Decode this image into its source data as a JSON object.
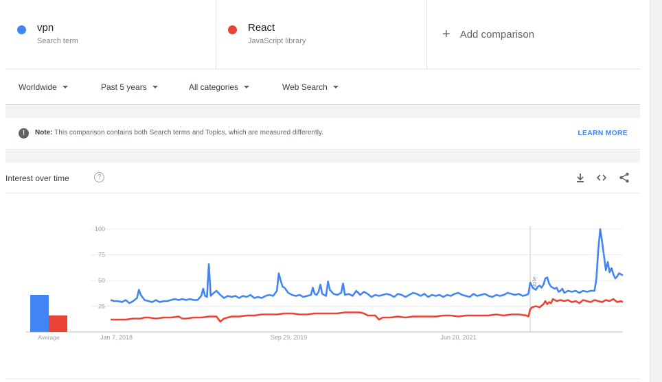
{
  "terms": [
    {
      "name": "vpn",
      "type": "Search term",
      "color": "#4285f4"
    },
    {
      "name": "React",
      "type": "JavaScript library",
      "color": "#ea4335"
    }
  ],
  "add_comparison": "Add comparison",
  "filters": {
    "region": "Worldwide",
    "time": "Past 5 years",
    "category": "All categories",
    "property": "Web Search"
  },
  "note": {
    "label": "Note:",
    "text": "This comparison contains both Search terms and Topics, which are measured differently.",
    "link": "LEARN MORE"
  },
  "card": {
    "title": "Interest over time",
    "help": "?"
  },
  "icons": [
    "download-icon",
    "embed-icon",
    "share-icon"
  ],
  "chart_data": {
    "type": "line",
    "ylim": [
      0,
      100
    ],
    "yticks": [
      "100",
      "75",
      "50",
      "25"
    ],
    "x_ticks": [
      {
        "label": "Jan 7, 2018",
        "week": 0
      },
      {
        "label": "Sep 29, 2019",
        "week": 90
      },
      {
        "label": "Jun 20, 2021",
        "week": 180
      }
    ],
    "annotation": {
      "label": "Note",
      "week": 222
    },
    "average": {
      "label": "Average",
      "values": [
        36,
        16
      ]
    },
    "series": [
      {
        "name": "vpn",
        "color": "#4285f4",
        "points": [
          [
            0,
            31
          ],
          [
            2,
            30
          ],
          [
            4,
            30
          ],
          [
            6,
            29
          ],
          [
            8,
            31
          ],
          [
            10,
            28
          ],
          [
            12,
            30
          ],
          [
            14,
            33
          ],
          [
            15,
            41
          ],
          [
            16,
            36
          ],
          [
            18,
            31
          ],
          [
            20,
            30
          ],
          [
            22,
            29
          ],
          [
            24,
            31
          ],
          [
            26,
            29
          ],
          [
            28,
            30
          ],
          [
            30,
            30
          ],
          [
            32,
            31
          ],
          [
            34,
            32
          ],
          [
            36,
            31
          ],
          [
            38,
            32
          ],
          [
            40,
            31
          ],
          [
            42,
            32
          ],
          [
            44,
            31
          ],
          [
            46,
            31
          ],
          [
            48,
            35
          ],
          [
            49,
            42
          ],
          [
            50,
            35
          ],
          [
            51,
            34
          ],
          [
            52,
            66
          ],
          [
            53,
            35
          ],
          [
            54,
            37
          ],
          [
            56,
            40
          ],
          [
            58,
            36
          ],
          [
            60,
            33
          ],
          [
            62,
            35
          ],
          [
            64,
            34
          ],
          [
            66,
            35
          ],
          [
            68,
            33
          ],
          [
            70,
            35
          ],
          [
            72,
            34
          ],
          [
            74,
            36
          ],
          [
            76,
            33
          ],
          [
            78,
            34
          ],
          [
            80,
            33
          ],
          [
            82,
            35
          ],
          [
            84,
            36
          ],
          [
            86,
            35
          ],
          [
            88,
            40
          ],
          [
            89,
            57
          ],
          [
            90,
            50
          ],
          [
            91,
            44
          ],
          [
            92,
            43
          ],
          [
            94,
            38
          ],
          [
            96,
            36
          ],
          [
            98,
            35
          ],
          [
            100,
            36
          ],
          [
            102,
            34
          ],
          [
            104,
            35
          ],
          [
            106,
            36
          ],
          [
            107,
            43
          ],
          [
            108,
            37
          ],
          [
            109,
            36
          ],
          [
            110,
            39
          ],
          [
            111,
            46
          ],
          [
            112,
            37
          ],
          [
            114,
            35
          ],
          [
            115,
            49
          ],
          [
            116,
            41
          ],
          [
            118,
            37
          ],
          [
            120,
            36
          ],
          [
            122,
            38
          ],
          [
            123,
            47
          ],
          [
            124,
            36
          ],
          [
            126,
            37
          ],
          [
            128,
            35
          ],
          [
            130,
            40
          ],
          [
            132,
            36
          ],
          [
            134,
            39
          ],
          [
            136,
            37
          ],
          [
            138,
            34
          ],
          [
            140,
            36
          ],
          [
            142,
            35
          ],
          [
            144,
            36
          ],
          [
            146,
            37
          ],
          [
            148,
            36
          ],
          [
            150,
            34
          ],
          [
            152,
            37
          ],
          [
            154,
            36
          ],
          [
            156,
            34
          ],
          [
            158,
            36
          ],
          [
            160,
            38
          ],
          [
            162,
            37
          ],
          [
            164,
            35
          ],
          [
            166,
            37
          ],
          [
            168,
            34
          ],
          [
            170,
            36
          ],
          [
            172,
            35
          ],
          [
            174,
            36
          ],
          [
            176,
            34
          ],
          [
            178,
            36
          ],
          [
            180,
            35
          ],
          [
            182,
            37
          ],
          [
            184,
            38
          ],
          [
            186,
            36
          ],
          [
            188,
            35
          ],
          [
            190,
            34
          ],
          [
            192,
            37
          ],
          [
            194,
            35
          ],
          [
            196,
            36
          ],
          [
            198,
            37
          ],
          [
            200,
            35
          ],
          [
            202,
            34
          ],
          [
            204,
            36
          ],
          [
            206,
            35
          ],
          [
            208,
            36
          ],
          [
            210,
            38
          ],
          [
            212,
            37
          ],
          [
            214,
            36
          ],
          [
            216,
            37
          ],
          [
            218,
            35
          ],
          [
            220,
            36
          ],
          [
            221,
            37
          ],
          [
            222,
            48
          ],
          [
            223,
            44
          ],
          [
            224,
            42
          ],
          [
            225,
            41
          ],
          [
            226,
            44
          ],
          [
            227,
            45
          ],
          [
            228,
            43
          ],
          [
            229,
            46
          ],
          [
            230,
            52
          ],
          [
            231,
            53
          ],
          [
            232,
            47
          ],
          [
            233,
            44
          ],
          [
            234,
            43
          ],
          [
            235,
            42
          ],
          [
            236,
            43
          ],
          [
            237,
            39
          ],
          [
            238,
            40
          ],
          [
            239,
            42
          ],
          [
            240,
            38
          ],
          [
            242,
            40
          ],
          [
            244,
            39
          ],
          [
            246,
            40
          ],
          [
            248,
            38
          ],
          [
            250,
            40
          ],
          [
            252,
            39
          ],
          [
            254,
            40
          ],
          [
            256,
            40
          ],
          [
            257,
            52
          ],
          [
            258,
            80
          ],
          [
            259,
            100
          ],
          [
            260,
            88
          ],
          [
            261,
            74
          ],
          [
            262,
            60
          ],
          [
            263,
            68
          ],
          [
            264,
            58
          ],
          [
            265,
            62
          ],
          [
            266,
            56
          ],
          [
            267,
            52
          ],
          [
            268,
            54
          ],
          [
            269,
            57
          ],
          [
            270,
            56
          ],
          [
            271,
            55
          ]
        ]
      },
      {
        "name": "React",
        "color": "#ea4335",
        "points": [
          [
            0,
            12
          ],
          [
            4,
            12
          ],
          [
            8,
            12
          ],
          [
            12,
            13
          ],
          [
            16,
            13
          ],
          [
            18,
            14
          ],
          [
            20,
            14
          ],
          [
            24,
            13
          ],
          [
            28,
            14
          ],
          [
            32,
            14
          ],
          [
            36,
            15
          ],
          [
            38,
            13
          ],
          [
            40,
            13
          ],
          [
            44,
            14
          ],
          [
            48,
            14
          ],
          [
            52,
            15
          ],
          [
            56,
            15
          ],
          [
            58,
            10
          ],
          [
            60,
            13
          ],
          [
            62,
            14
          ],
          [
            64,
            15
          ],
          [
            68,
            15
          ],
          [
            72,
            16
          ],
          [
            76,
            16
          ],
          [
            80,
            17
          ],
          [
            84,
            17
          ],
          [
            88,
            17
          ],
          [
            92,
            18
          ],
          [
            96,
            18
          ],
          [
            100,
            17
          ],
          [
            104,
            17
          ],
          [
            108,
            18
          ],
          [
            112,
            18
          ],
          [
            116,
            18
          ],
          [
            120,
            18
          ],
          [
            124,
            19
          ],
          [
            128,
            19
          ],
          [
            132,
            19
          ],
          [
            134,
            18
          ],
          [
            136,
            16
          ],
          [
            140,
            16
          ],
          [
            142,
            12
          ],
          [
            144,
            14
          ],
          [
            148,
            14
          ],
          [
            152,
            15
          ],
          [
            156,
            14
          ],
          [
            160,
            15
          ],
          [
            164,
            15
          ],
          [
            168,
            15
          ],
          [
            172,
            15
          ],
          [
            176,
            16
          ],
          [
            180,
            16
          ],
          [
            184,
            15
          ],
          [
            188,
            16
          ],
          [
            192,
            16
          ],
          [
            196,
            16
          ],
          [
            200,
            16
          ],
          [
            204,
            17
          ],
          [
            208,
            16
          ],
          [
            212,
            17
          ],
          [
            216,
            17
          ],
          [
            220,
            16
          ],
          [
            221,
            15
          ],
          [
            222,
            22
          ],
          [
            223,
            24
          ],
          [
            225,
            25
          ],
          [
            227,
            24
          ],
          [
            229,
            27
          ],
          [
            230,
            30
          ],
          [
            231,
            27
          ],
          [
            232,
            29
          ],
          [
            233,
            28
          ],
          [
            234,
            32
          ],
          [
            235,
            31
          ],
          [
            236,
            30
          ],
          [
            238,
            31
          ],
          [
            240,
            30
          ],
          [
            242,
            31
          ],
          [
            244,
            29
          ],
          [
            246,
            30
          ],
          [
            248,
            28
          ],
          [
            250,
            31
          ],
          [
            252,
            30
          ],
          [
            254,
            29
          ],
          [
            256,
            31
          ],
          [
            258,
            30
          ],
          [
            260,
            29
          ],
          [
            262,
            31
          ],
          [
            264,
            30
          ],
          [
            266,
            32
          ],
          [
            268,
            29
          ],
          [
            270,
            30
          ],
          [
            271,
            29
          ]
        ]
      }
    ]
  }
}
